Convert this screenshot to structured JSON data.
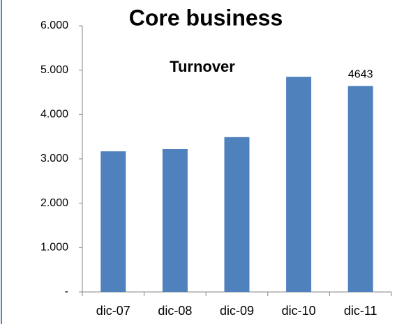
{
  "chart_data": {
    "type": "bar",
    "title": "Core business",
    "subtitle": "Turnover",
    "categories": [
      "dic-07",
      "dic-08",
      "dic-09",
      "dic-10",
      "dic-11"
    ],
    "values": [
      3170,
      3220,
      3490,
      4850,
      4643
    ],
    "value_labels": [
      null,
      null,
      null,
      null,
      "4643"
    ],
    "color": "#4f81bd",
    "ylim": [
      0,
      6000
    ],
    "yticks": [
      {
        "value": 0,
        "label": "-"
      },
      {
        "value": 1000,
        "label": "1.000"
      },
      {
        "value": 2000,
        "label": "2.000"
      },
      {
        "value": 3000,
        "label": "3.000"
      },
      {
        "value": 4000,
        "label": "4.000"
      },
      {
        "value": 5000,
        "label": "5.000"
      },
      {
        "value": 6000,
        "label": "6.000"
      }
    ],
    "grid": false
  }
}
